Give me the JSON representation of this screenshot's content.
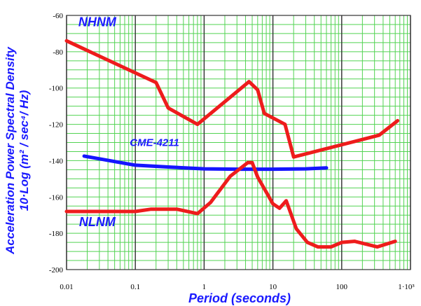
{
  "chart_data": {
    "type": "line",
    "title": "",
    "xlabel": "Period (seconds)",
    "ylabel_line1": "Acceleration Power Spectral Density",
    "ylabel_line2": "10·Log (m² / sec⁴/ Hz)",
    "x_scale": "log",
    "xlim": [
      0.01,
      1000
    ],
    "ylim": [
      -200,
      -60
    ],
    "grid": true,
    "x_ticks": [
      {
        "value": 0.01,
        "label": "0.01"
      },
      {
        "value": 0.1,
        "label": "0.1"
      },
      {
        "value": 1,
        "label": "1"
      },
      {
        "value": 10,
        "label": "10"
      },
      {
        "value": 100,
        "label": "100"
      },
      {
        "value": 1000,
        "label": "1·10³"
      }
    ],
    "y_ticks": [
      {
        "value": -60,
        "label": "-60"
      },
      {
        "value": -80,
        "label": "-80"
      },
      {
        "value": -100,
        "label": "-100"
      },
      {
        "value": -120,
        "label": "-120"
      },
      {
        "value": -140,
        "label": "-140"
      },
      {
        "value": -160,
        "label": "-160"
      },
      {
        "value": -180,
        "label": "-180"
      },
      {
        "value": -200,
        "label": "-200"
      }
    ],
    "series": [
      {
        "name": "NHNM",
        "color": "#ee1c1c",
        "x": [
          0.01,
          0.2,
          0.3,
          0.8,
          4.5,
          6,
          7.5,
          15,
          20,
          350,
          650
        ],
        "y": [
          -74,
          -97,
          -111,
          -120,
          -96.5,
          -101,
          -114,
          -120,
          -138,
          -126,
          -118
        ]
      },
      {
        "name": "CME-4211",
        "color": "#1515ff",
        "x": [
          0.018,
          0.05,
          0.1,
          0.3,
          1,
          3,
          10,
          30,
          60
        ],
        "y": [
          -137.5,
          -140.5,
          -142.5,
          -143.5,
          -144.5,
          -144.7,
          -144.7,
          -144.5,
          -144
        ]
      },
      {
        "name": "NLNM",
        "color": "#ee1c1c",
        "x": [
          0.01,
          0.1,
          0.17,
          0.4,
          0.8,
          1.24,
          2.4,
          4.3,
          5,
          6,
          10,
          12.5,
          15.6,
          21.9,
          31.6,
          45,
          70,
          101,
          154,
          328,
          600
        ],
        "y": [
          -168,
          -168,
          -166.7,
          -166.7,
          -169.2,
          -163,
          -148.6,
          -141.1,
          -141.1,
          -149,
          -163.8,
          -166.2,
          -162.1,
          -177.5,
          -185,
          -187.5,
          -187.5,
          -185,
          -184.4,
          -187.5,
          -184.4
        ]
      }
    ]
  }
}
